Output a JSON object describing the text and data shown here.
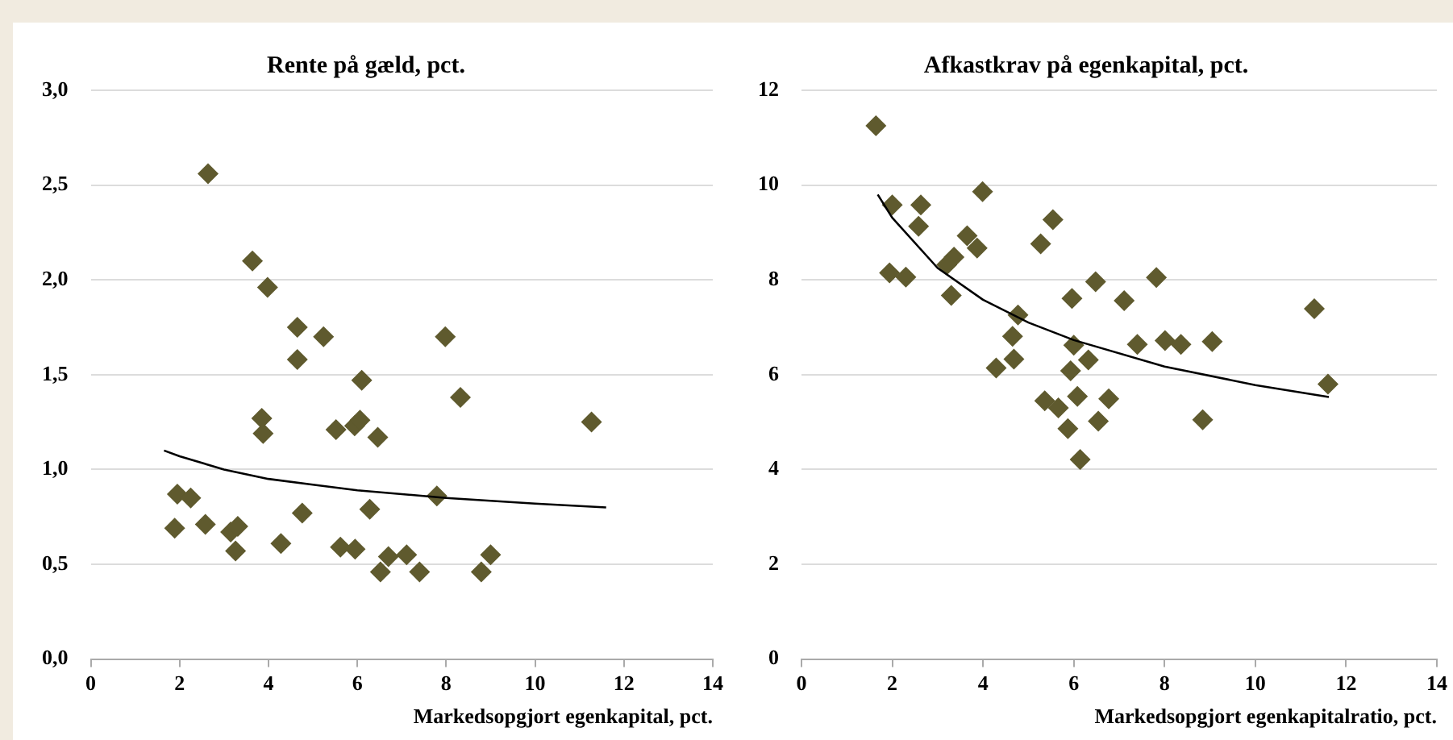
{
  "chart_data": [
    {
      "type": "scatter",
      "title": "Rente på gæld, pct.",
      "xlabel": "Markedsopgjort egenkapital, pct.",
      "xlim": [
        0,
        14
      ],
      "xticks": [
        0,
        2,
        4,
        6,
        8,
        10,
        12,
        14
      ],
      "ylim": [
        0,
        3
      ],
      "yticks": [
        {
          "value": 0,
          "label": "0,0"
        },
        {
          "value": 0.5,
          "label": "0,5"
        },
        {
          "value": 1,
          "label": "1,0"
        },
        {
          "value": 1.5,
          "label": "1,5"
        },
        {
          "value": 2,
          "label": "2,0"
        },
        {
          "value": 2.5,
          "label": "2,5"
        },
        {
          "value": 3,
          "label": "3,0"
        }
      ],
      "grid": "y",
      "marker": "diamond",
      "series": [
        {
          "color": "#5f5a2e",
          "x": [
            2.64,
            3.64,
            3.98,
            4.65,
            5.24,
            4.65,
            6.1,
            7.98,
            8.32,
            11.27,
            3.85,
            3.88,
            5.52,
            5.94,
            6.06,
            6.46,
            1.95,
            2.25,
            1.89,
            2.58,
            3.15,
            3.31,
            3.26,
            4.28,
            4.76,
            5.62,
            5.95,
            6.28,
            6.52,
            6.7,
            7.11,
            7.4,
            7.79,
            8.79,
            9.0
          ],
          "values": [
            2.56,
            2.1,
            1.96,
            1.75,
            1.7,
            1.58,
            1.47,
            1.7,
            1.38,
            1.25,
            1.27,
            1.19,
            1.21,
            1.23,
            1.26,
            1.17,
            0.87,
            0.85,
            0.69,
            0.71,
            0.67,
            0.7,
            0.57,
            0.61,
            0.77,
            0.59,
            0.58,
            0.79,
            0.46,
            0.54,
            0.55,
            0.46,
            0.86,
            0.46,
            0.55
          ]
        },
        {
          "type": "line",
          "color": "#000000",
          "marker": "none",
          "x": [
            1.65,
            2,
            3,
            4,
            5,
            6,
            8,
            10,
            11.6
          ],
          "values": [
            1.1,
            1.07,
            1.0,
            0.95,
            0.92,
            0.89,
            0.85,
            0.82,
            0.8
          ]
        }
      ]
    },
    {
      "type": "scatter",
      "title": "Afkastkrav på egenkapital, pct.",
      "xlabel": "Markedsopgjort egenkapitalratio, pct.",
      "xlim": [
        0,
        14
      ],
      "xticks": [
        0,
        2,
        4,
        6,
        8,
        10,
        12,
        14
      ],
      "ylim": [
        0,
        12
      ],
      "yticks": [
        0,
        2,
        4,
        6,
        8,
        10,
        12
      ],
      "grid": "y",
      "marker": "diamond",
      "series": [
        {
          "color": "#5f5a2e",
          "x": [
            1.64,
            2.0,
            2.63,
            2.58,
            1.94,
            2.3,
            3.99,
            3.65,
            3.87,
            3.36,
            3.2,
            3.3,
            5.54,
            5.27,
            4.77,
            4.65,
            4.68,
            4.29,
            5.96,
            6.48,
            7.11,
            7.82,
            6.0,
            5.93,
            6.32,
            7.4,
            8.01,
            8.36,
            9.05,
            11.3,
            11.6,
            5.36,
            5.66,
            6.08,
            6.77,
            5.87,
            6.54,
            8.84,
            6.14
          ],
          "values": [
            11.25,
            9.58,
            9.58,
            9.13,
            8.15,
            8.06,
            9.86,
            8.93,
            8.67,
            8.48,
            8.32,
            7.67,
            9.27,
            8.76,
            7.26,
            6.81,
            6.33,
            6.14,
            7.61,
            7.96,
            7.56,
            8.05,
            6.62,
            6.08,
            6.31,
            6.64,
            6.72,
            6.64,
            6.7,
            7.39,
            5.8,
            5.45,
            5.3,
            5.54,
            5.49,
            4.86,
            5.02,
            5.05,
            4.21
          ]
        },
        {
          "type": "line",
          "color": "#000000",
          "marker": "none",
          "x": [
            1.68,
            2,
            3,
            4,
            5,
            6,
            8,
            10,
            11.62
          ],
          "values": [
            9.8,
            9.31,
            8.25,
            7.58,
            7.1,
            6.73,
            6.17,
            5.78,
            5.53
          ]
        }
      ]
    }
  ]
}
